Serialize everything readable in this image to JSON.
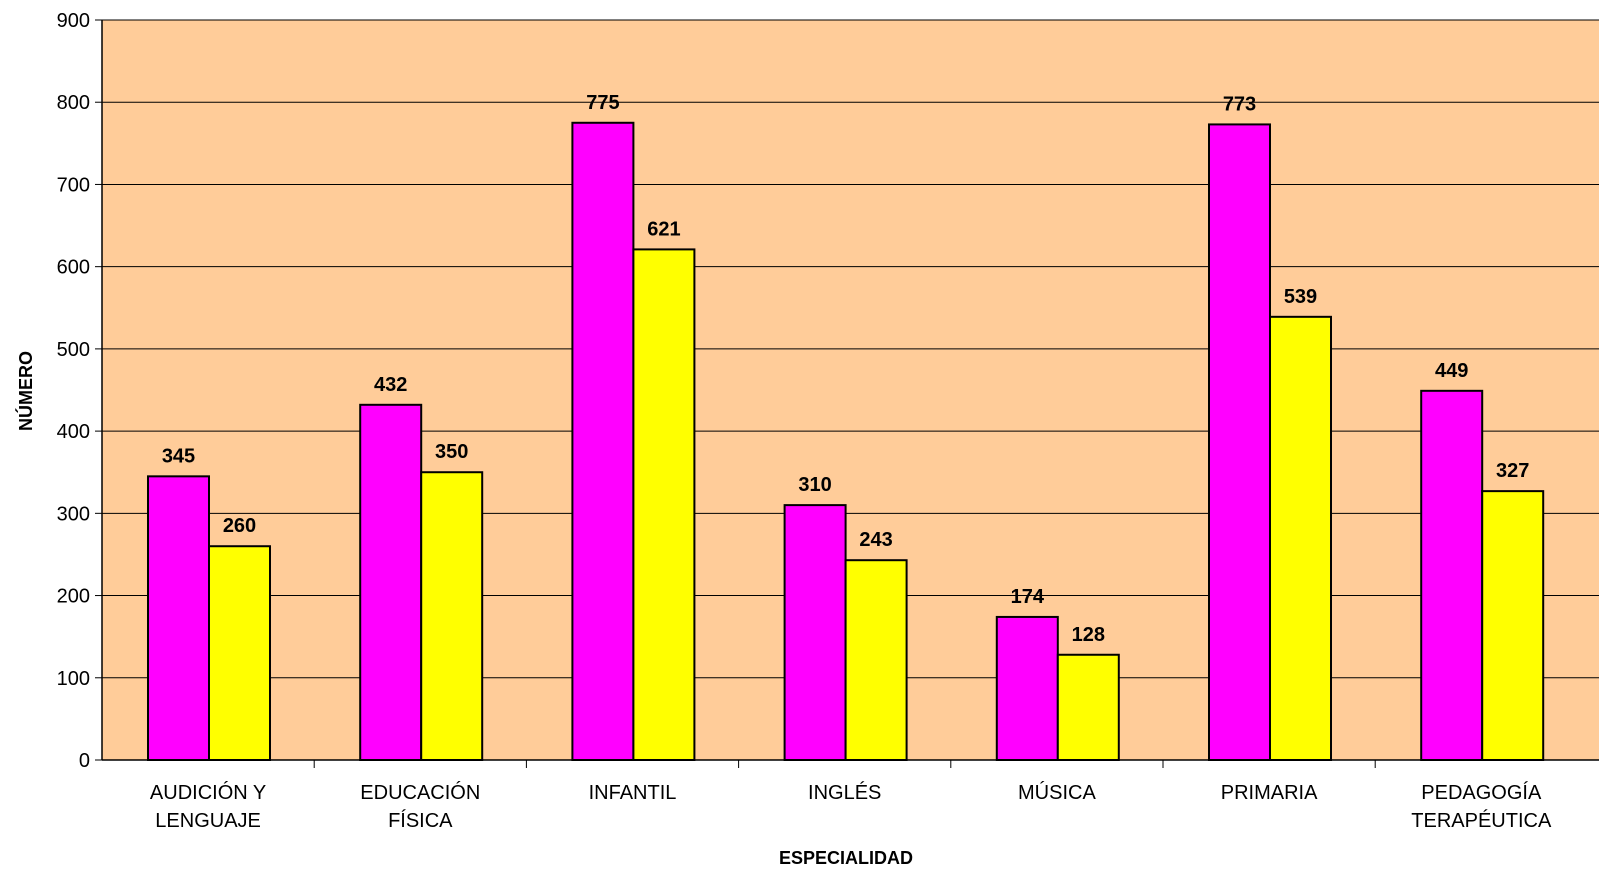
{
  "colors": {
    "plot_background": "#FFCC99",
    "series_1": "#FF00FF",
    "series_2": "#FFFF00",
    "bar_stroke": "#000000",
    "gridline": "#000000"
  },
  "chart_data": {
    "type": "bar",
    "categories": [
      [
        "AUDICIÓN Y",
        "LENGUAJE"
      ],
      [
        "EDUCACIÓN",
        "FÍSICA"
      ],
      [
        "INFANTIL"
      ],
      [
        "INGLÉS"
      ],
      [
        "MÚSICA"
      ],
      [
        "PRIMARIA"
      ],
      [
        "PEDAGOGÍA",
        "TERAPÉUTICA"
      ]
    ],
    "series": [
      {
        "values": [
          345,
          432,
          775,
          310,
          174,
          773,
          449
        ]
      },
      {
        "values": [
          260,
          350,
          621,
          243,
          128,
          539,
          327
        ]
      }
    ],
    "xlabel": "ESPECIALIDAD",
    "ylabel": "NÚMERO",
    "ylim": [
      0,
      900
    ],
    "yticks": [
      0,
      100,
      200,
      300,
      400,
      500,
      600,
      700,
      800,
      900
    ],
    "grid": true,
    "legend": "none"
  }
}
